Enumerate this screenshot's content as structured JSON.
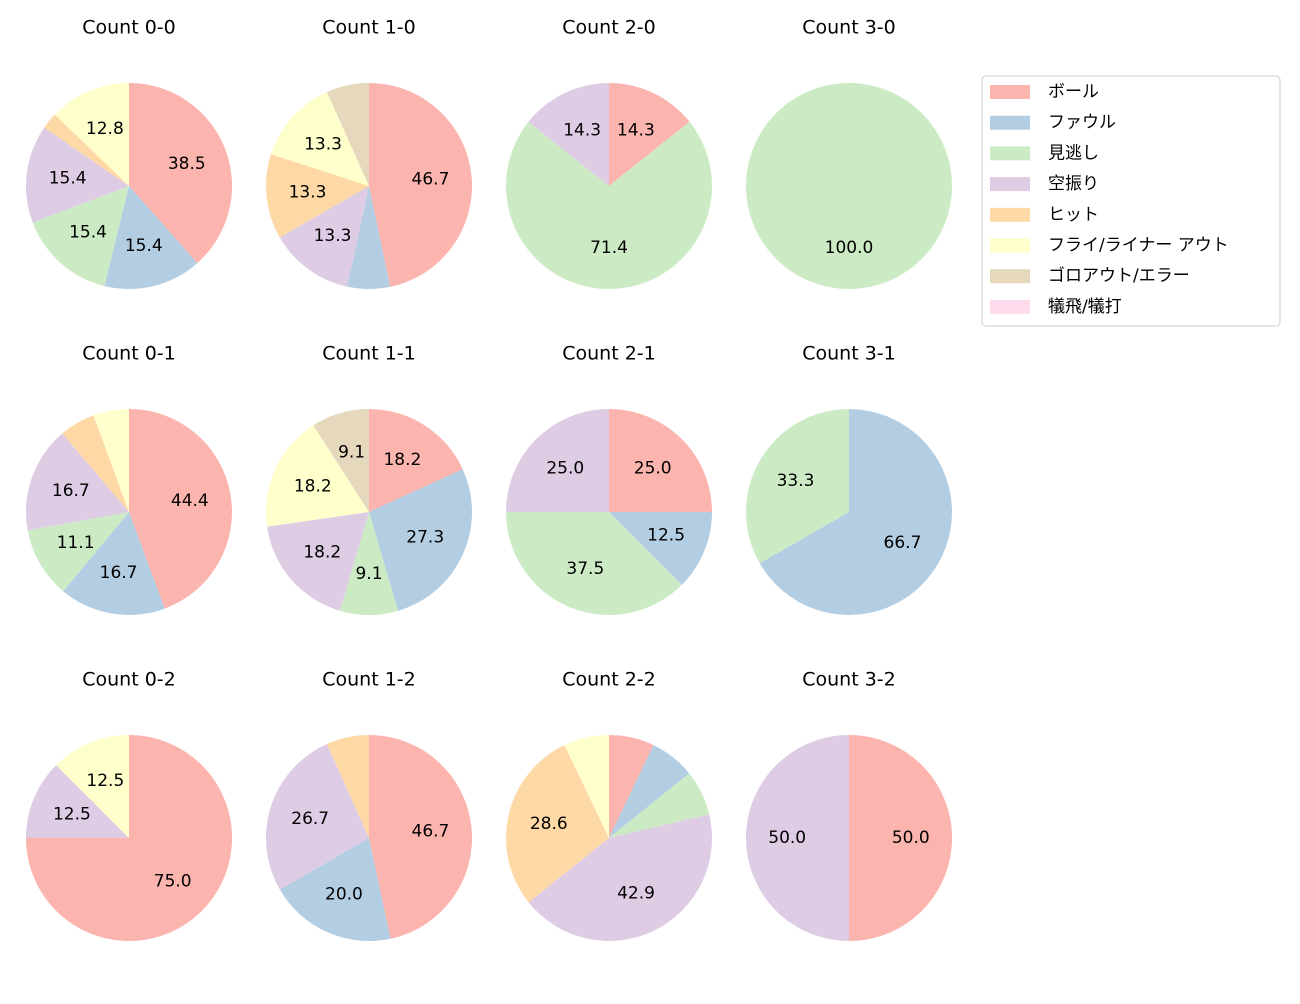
{
  "legend": {
    "labels": [
      "ボール",
      "ファウル",
      "見逃し",
      "空振り",
      "ヒット",
      "フライ/ライナー アウト",
      "ゴロアウト/エラー",
      "犠飛/犠打"
    ],
    "colors": [
      "#fbb4ae",
      "#b3cde3",
      "#ccebc5",
      "#decbe4",
      "#fed9a6",
      "#ffffcc",
      "#e5d8bd",
      "#fddaec"
    ]
  },
  "chart_data": [
    {
      "type": "pie",
      "title": "Count 0-0",
      "values": [
        38.5,
        15.4,
        15.4,
        15.4,
        2.6,
        12.8,
        null,
        null
      ],
      "value_labels": [
        "38.5",
        "15.4",
        "15.4",
        "15.4",
        null,
        "12.8",
        null,
        null
      ]
    },
    {
      "type": "pie",
      "title": "Count 1-0",
      "values": [
        46.7,
        6.7,
        null,
        13.3,
        13.3,
        13.3,
        6.7,
        null
      ],
      "value_labels": [
        "46.7",
        null,
        null,
        "13.3",
        "13.3",
        "13.3",
        null,
        null
      ]
    },
    {
      "type": "pie",
      "title": "Count 2-0",
      "values": [
        14.3,
        null,
        71.4,
        14.3,
        null,
        null,
        null,
        null
      ],
      "value_labels": [
        "14.3",
        null,
        "71.4",
        "14.3",
        null,
        null,
        null,
        null
      ]
    },
    {
      "type": "pie",
      "title": "Count 3-0",
      "values": [
        null,
        null,
        100,
        null,
        null,
        null,
        null,
        null
      ],
      "value_labels": [
        null,
        null,
        "100.0",
        null,
        null,
        null,
        null,
        null
      ]
    },
    {
      "type": "pie",
      "title": "Count 0-1",
      "values": [
        44.4,
        16.7,
        11.1,
        16.7,
        5.6,
        5.6,
        null,
        null
      ],
      "value_labels": [
        "44.4",
        "16.7",
        "11.1",
        "16.7",
        null,
        null,
        null,
        null
      ]
    },
    {
      "type": "pie",
      "title": "Count 1-1",
      "values": [
        18.2,
        27.3,
        9.1,
        18.2,
        null,
        18.2,
        9.1,
        null
      ],
      "value_labels": [
        "18.2",
        "27.3",
        "9.1",
        "18.2",
        null,
        "18.2",
        "9.1",
        null
      ]
    },
    {
      "type": "pie",
      "title": "Count 2-1",
      "values": [
        25,
        12.5,
        37.5,
        25,
        null,
        null,
        null,
        null
      ],
      "value_labels": [
        "25.0",
        "12.5",
        "37.5",
        "25.0",
        null,
        null,
        null,
        null
      ]
    },
    {
      "type": "pie",
      "title": "Count 3-1",
      "values": [
        null,
        66.7,
        33.3,
        null,
        null,
        null,
        null,
        null
      ],
      "value_labels": [
        null,
        "66.7",
        "33.3",
        null,
        null,
        null,
        null,
        null
      ]
    },
    {
      "type": "pie",
      "title": "Count 0-2",
      "values": [
        75,
        null,
        null,
        12.5,
        null,
        12.5,
        null,
        null
      ],
      "value_labels": [
        "75.0",
        null,
        null,
        "12.5",
        null,
        "12.5",
        null,
        null
      ]
    },
    {
      "type": "pie",
      "title": "Count 1-2",
      "values": [
        46.7,
        20,
        null,
        26.7,
        6.7,
        null,
        null,
        null
      ],
      "value_labels": [
        "46.7",
        "20.0",
        null,
        "26.7",
        null,
        null,
        null,
        null
      ]
    },
    {
      "type": "pie",
      "title": "Count 2-2",
      "values": [
        7.1,
        7.1,
        7.1,
        42.9,
        28.6,
        7.1,
        null,
        null
      ],
      "value_labels": [
        null,
        null,
        null,
        "42.9",
        "28.6",
        null,
        null,
        null
      ]
    },
    {
      "type": "pie",
      "title": "Count 3-2",
      "values": [
        50,
        null,
        null,
        50,
        null,
        null,
        null,
        null
      ],
      "value_labels": [
        "50.0",
        null,
        null,
        "50.0",
        null,
        null,
        null,
        null
      ]
    }
  ]
}
